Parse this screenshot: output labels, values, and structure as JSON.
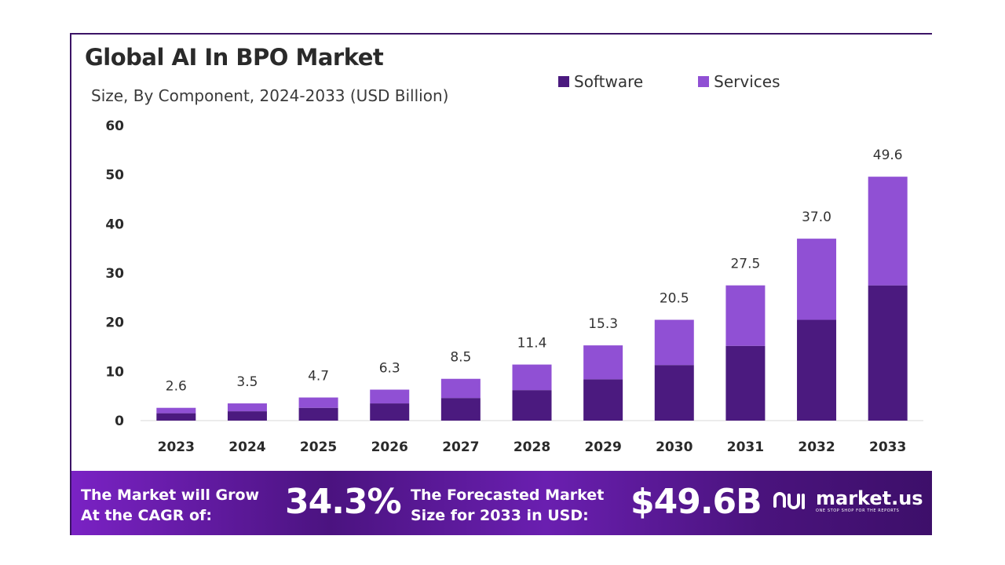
{
  "chart_data": {
    "type": "bar",
    "stacked": true,
    "title": "Global AI In BPO Market",
    "subtitle": "Size, By Component, 2024-2033 (USD Billion)",
    "categories": [
      "2023",
      "2024",
      "2025",
      "2026",
      "2027",
      "2028",
      "2029",
      "2030",
      "2031",
      "2032",
      "2033"
    ],
    "series": [
      {
        "name": "Software",
        "color": "#4b1a7f",
        "values": [
          1.5,
          1.9,
          2.6,
          3.5,
          4.6,
          6.2,
          8.4,
          11.3,
          15.2,
          20.5,
          27.5
        ]
      },
      {
        "name": "Services",
        "color": "#9050d4",
        "values": [
          1.1,
          1.6,
          2.1,
          2.8,
          3.9,
          5.2,
          6.9,
          9.2,
          12.3,
          16.5,
          22.1
        ]
      }
    ],
    "totals_labels": [
      "2.6",
      "3.5",
      "4.7",
      "6.3",
      "8.5",
      "11.4",
      "15.3",
      "20.5",
      "27.5",
      "37.0",
      "49.6"
    ],
    "totals": [
      2.6,
      3.5,
      4.7,
      6.3,
      8.5,
      11.4,
      15.3,
      20.5,
      27.5,
      37.0,
      49.6
    ],
    "yticks": [
      "0",
      "10",
      "20",
      "30",
      "40",
      "50",
      "60"
    ],
    "ylim": [
      0,
      60
    ],
    "xlabel": "",
    "ylabel": "",
    "legend_position": "top-right"
  },
  "banner": {
    "cagr_text_line1": "The Market will Grow",
    "cagr_text_line2": "At the CAGR of:",
    "cagr_value": "34.3%",
    "forecast_text_line1": "The Forecasted Market",
    "forecast_text_line2": "Size for 2033 in USD:",
    "forecast_value": "$49.6B",
    "brand_name": "market.us",
    "brand_tagline": "ONE STOP SHOP FOR THE REPORTS"
  },
  "colors": {
    "software": "#4b1a7f",
    "services": "#9050d4",
    "accent": "#3c1466"
  }
}
